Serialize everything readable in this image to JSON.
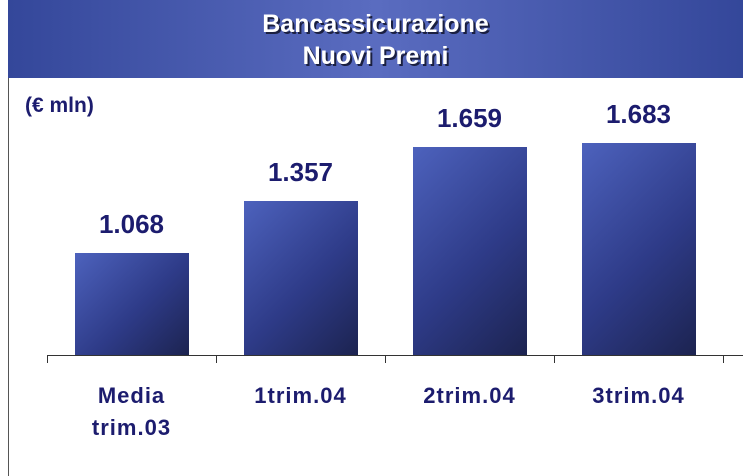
{
  "chart_data": {
    "type": "bar",
    "title": "Bancassicurazione",
    "subtitle": "Nuovi Premi",
    "unit_label": "(€ mln)",
    "categories": [
      "Media trim.03",
      "1trim.04",
      "2trim.04",
      "3trim.04"
    ],
    "values": [
      1068,
      1357,
      1659,
      1683
    ],
    "value_labels": [
      "1.068",
      "1.357",
      "1.659",
      "1.683"
    ],
    "color": "#3a4ca8",
    "ylim": [
      500,
      1800
    ]
  }
}
